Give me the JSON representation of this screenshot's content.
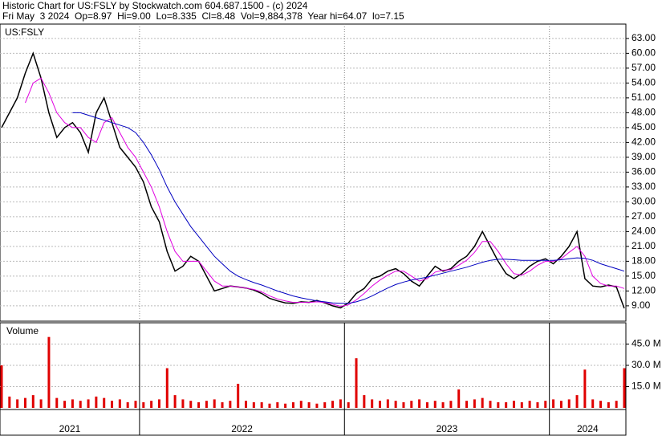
{
  "header": {
    "title": "Historic Chart for US:FSLY by Stockwatch.com 604.687.1500 - (c) 2024",
    "quote": "Fri May  3 2024  Op=8.97  Hi=9.00  Lo=8.335  Cl=8.48  Vol=9,884,378  Year hi=64.07  lo=7.15"
  },
  "chart_data": [
    {
      "type": "line",
      "label": "US:FSLY",
      "ylim": [
        5.9,
        65.9
      ],
      "grid": true,
      "yticks": [
        {
          "value": 9,
          "label": "9.00"
        },
        {
          "value": 12,
          "label": "12.00"
        },
        {
          "value": 15,
          "label": "15.00"
        },
        {
          "value": 18,
          "label": "18.00"
        },
        {
          "value": 21,
          "label": "21.00"
        },
        {
          "value": 24,
          "label": "24.00"
        },
        {
          "value": 27,
          "label": "27.00"
        },
        {
          "value": 30,
          "label": "30.00"
        },
        {
          "value": 33,
          "label": "33.00"
        },
        {
          "value": 36,
          "label": "36.00"
        },
        {
          "value": 39,
          "label": "39.00"
        },
        {
          "value": 42,
          "label": "42.00"
        },
        {
          "value": 45,
          "label": "45.00"
        },
        {
          "value": 48,
          "label": "48.00"
        },
        {
          "value": 51,
          "label": "51.00"
        },
        {
          "value": 54,
          "label": "54.00"
        },
        {
          "value": 57,
          "label": "57.00"
        },
        {
          "value": 60,
          "label": "60.00"
        },
        {
          "value": 63,
          "label": "63.00"
        }
      ],
      "series": [
        {
          "color": "#000000",
          "values": [
            45,
            48,
            51,
            56,
            60,
            55,
            48,
            43,
            45,
            46,
            44,
            40,
            48,
            51,
            46,
            41,
            39,
            37,
            34,
            29,
            26,
            20,
            16,
            17,
            19,
            18,
            15,
            12,
            12.5,
            13,
            12.8,
            12.6,
            12.2,
            11.5,
            10.5,
            10,
            9.6,
            9.5,
            9.8,
            9.7,
            10.1,
            9.6,
            9,
            8.6,
            9.6,
            11.5,
            12.5,
            14.5,
            15,
            16,
            16.5,
            15.5,
            14,
            13,
            15,
            17,
            16,
            16.5,
            18,
            19,
            21,
            24,
            21,
            18,
            15.5,
            14.5,
            15.5,
            17,
            18,
            18.5,
            17.5,
            19,
            21,
            24,
            14.5,
            13,
            12.8,
            13.2,
            12.8,
            8.5
          ]
        },
        {
          "color": "#e000e0",
          "values": [
            null,
            null,
            null,
            50,
            54,
            55,
            52,
            48,
            46,
            45,
            45,
            43,
            42,
            46,
            47,
            44,
            41,
            39,
            36,
            33,
            29,
            24,
            20,
            18,
            18,
            18,
            16,
            14,
            13,
            13,
            12.8,
            12.6,
            12.3,
            11.8,
            11,
            10.4,
            10,
            9.7,
            9.7,
            9.7,
            9.8,
            9.7,
            9.3,
            8.9,
            9.2,
            10.2,
            11.5,
            13,
            14.2,
            15.2,
            16,
            16,
            15,
            14,
            14.5,
            15.8,
            16.2,
            16.3,
            17.2,
            18.2,
            19.8,
            22,
            22,
            20,
            17.5,
            15.5,
            15.2,
            16,
            17.2,
            18,
            18,
            18.5,
            19.8,
            21,
            19,
            15,
            13.5,
            13,
            13,
            12.5
          ]
        },
        {
          "color": "#0000c0",
          "values": [
            null,
            null,
            null,
            null,
            null,
            null,
            null,
            null,
            null,
            48,
            48,
            47.5,
            47,
            46.5,
            46,
            45.5,
            45,
            44,
            42,
            39.5,
            36.5,
            33,
            30,
            27.5,
            25,
            23,
            21,
            19,
            17.5,
            16,
            15,
            14.3,
            13.7,
            13.2,
            12.6,
            12,
            11.5,
            11,
            10.6,
            10.3,
            10,
            9.8,
            9.6,
            9.5,
            9.5,
            9.8,
            10.3,
            11,
            11.8,
            12.6,
            13.3,
            13.8,
            14.2,
            14.5,
            14.8,
            15.2,
            15.6,
            16,
            16.4,
            16.8,
            17.3,
            17.8,
            18.2,
            18.4,
            18.4,
            18.3,
            18.2,
            18.2,
            18.2,
            18.2,
            18.2,
            18.3,
            18.5,
            18.7,
            18.6,
            18.2,
            17.5,
            17,
            16.5,
            16
          ]
        }
      ]
    },
    {
      "type": "bar",
      "label": "Volume",
      "ylim": [
        0,
        60
      ],
      "color": "#e00000",
      "grid": true,
      "yticks": [
        {
          "value": 15,
          "label": "15.0 M"
        },
        {
          "value": 30,
          "label": "30.0 M"
        },
        {
          "value": 45,
          "label": "45.0 M"
        }
      ],
      "categories": [
        "2021",
        null,
        null,
        null,
        null,
        null,
        null,
        null,
        null,
        null,
        null,
        null,
        null,
        null,
        null,
        null,
        null,
        null,
        "2022",
        null,
        null,
        null,
        null,
        null,
        null,
        null,
        null,
        null,
        null,
        null,
        null,
        null,
        null,
        null,
        null,
        null,
        null,
        null,
        null,
        null,
        null,
        null,
        null,
        null,
        "2023",
        null,
        null,
        null,
        null,
        null,
        null,
        null,
        null,
        null,
        null,
        null,
        null,
        null,
        null,
        null,
        null,
        null,
        null,
        null,
        null,
        null,
        null,
        null,
        null,
        null,
        "2024",
        null,
        null,
        null,
        null,
        null,
        null,
        null,
        null,
        null
      ],
      "values": [
        30,
        8,
        6,
        7,
        9,
        6,
        50,
        7,
        5,
        6,
        5,
        6,
        8,
        7,
        5,
        6,
        4,
        5,
        4,
        5,
        6,
        28,
        9,
        6,
        5,
        4,
        5,
        6,
        4,
        5,
        17,
        5,
        4,
        4,
        3,
        4,
        3,
        4,
        5,
        4,
        3,
        4,
        5,
        6,
        4,
        35,
        9,
        6,
        5,
        6,
        5,
        4,
        5,
        6,
        4,
        5,
        4,
        5,
        13,
        5,
        6,
        7,
        5,
        4,
        4,
        5,
        4,
        5,
        4,
        5,
        6,
        5,
        6,
        9,
        27,
        6,
        5,
        4,
        5,
        28
      ]
    }
  ]
}
